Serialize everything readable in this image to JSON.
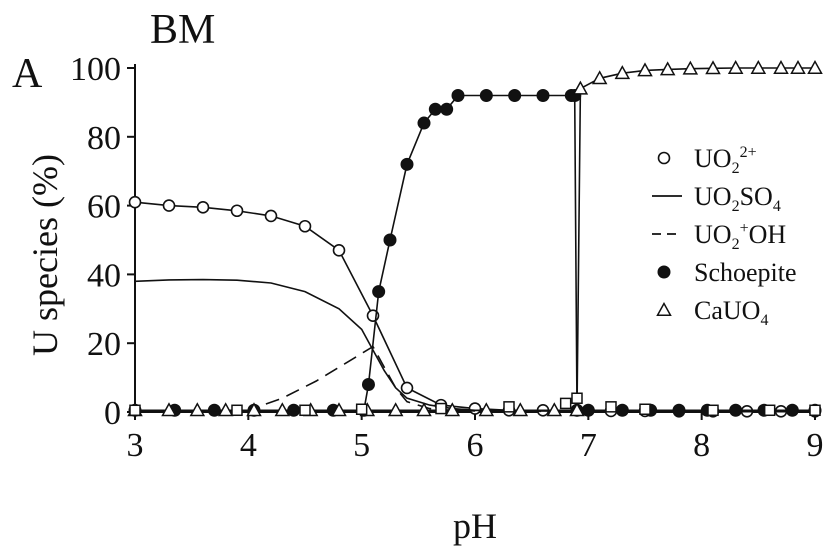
{
  "chart_data": {
    "type": "line",
    "panel_title": "BM",
    "panel_letter": "A",
    "xlabel": "pH",
    "ylabel": "U species (%)",
    "xlim": [
      3,
      9
    ],
    "ylim": [
      0,
      100
    ],
    "xticks": [
      3,
      4,
      5,
      6,
      7,
      8,
      9
    ],
    "yticks": [
      0,
      20,
      40,
      60,
      80,
      100
    ],
    "grid": false,
    "legend_position": "right",
    "series": [
      {
        "name": "UO2 2+",
        "marker": "open-circle",
        "line": "solid",
        "x": [
          3.0,
          3.3,
          3.6,
          3.9,
          4.2,
          4.5,
          4.8,
          5.1,
          5.4,
          5.7,
          6.0,
          6.3,
          6.6,
          6.9,
          7.2,
          7.5,
          7.8,
          8.1,
          8.4,
          8.7,
          9.0
        ],
        "y": [
          61,
          60,
          59.5,
          58.5,
          57,
          54,
          47,
          28,
          7,
          2,
          1,
          0.5,
          0.5,
          0.5,
          0.3,
          0.3,
          0.2,
          0.2,
          0.2,
          0.2,
          0.2
        ]
      },
      {
        "name": "UO2SO4",
        "marker": "none",
        "line": "solid",
        "x": [
          3.0,
          3.3,
          3.6,
          3.9,
          4.2,
          4.5,
          4.8,
          5.0,
          5.1,
          5.2,
          5.3,
          5.4,
          5.6,
          5.8,
          6.0,
          6.5,
          7.0,
          8.0,
          9.0
        ],
        "y": [
          38,
          38.4,
          38.5,
          38.3,
          37.5,
          35,
          30,
          24,
          18,
          12,
          7,
          4,
          2,
          1,
          0.5,
          0.3,
          0.2,
          0.1,
          0.1
        ]
      },
      {
        "name": "UO2OH+",
        "marker": "none",
        "line": "dashed",
        "x": [
          3.0,
          3.5,
          4.0,
          4.3,
          4.6,
          4.9,
          5.1,
          5.2,
          5.3,
          5.4,
          5.6,
          5.8,
          6.0,
          6.5,
          7.0,
          8.0,
          9.0
        ],
        "y": [
          0,
          0.2,
          0.5,
          4,
          9,
          15,
          19,
          13,
          7,
          3,
          1,
          0.5,
          0.3,
          0.2,
          0.1,
          0.1,
          0.1
        ]
      },
      {
        "name": "Schoepite",
        "marker": "filled-circle",
        "line": "solid",
        "x": [
          3.0,
          3.35,
          3.7,
          4.05,
          4.4,
          4.75,
          5.02,
          5.06,
          5.15,
          5.25,
          5.4,
          5.55,
          5.65,
          5.75,
          5.85,
          6.1,
          6.35,
          6.6,
          6.85,
          6.88,
          6.9,
          7.0,
          7.3,
          7.55,
          7.8,
          8.05,
          8.3,
          8.55,
          8.8,
          9.0
        ],
        "y": [
          0.5,
          0.5,
          0.5,
          0.5,
          0.5,
          0.5,
          0.5,
          8,
          35,
          50,
          72,
          84,
          88,
          88,
          92,
          92,
          92,
          92,
          92,
          92,
          0.5,
          0.5,
          0.5,
          0.5,
          0.5,
          0.5,
          0.5,
          0.5,
          0.5,
          0.5
        ]
      },
      {
        "name": "CaUO4",
        "marker": "open-triangle",
        "line": "solid",
        "x": [
          3.0,
          3.3,
          3.55,
          3.8,
          4.05,
          4.3,
          4.55,
          4.8,
          5.05,
          5.3,
          5.55,
          5.8,
          6.1,
          6.4,
          6.7,
          6.9,
          6.93,
          7.1,
          7.3,
          7.5,
          7.7,
          7.9,
          8.1,
          8.3,
          8.5,
          8.7,
          8.85,
          9.0
        ],
        "y": [
          0.5,
          0.5,
          0.5,
          0.5,
          0.5,
          0.5,
          0.5,
          0.5,
          0.5,
          0.5,
          0.5,
          0.5,
          0.5,
          0.5,
          0.5,
          0.5,
          94,
          97,
          98.5,
          99.3,
          99.6,
          99.8,
          99.9,
          100,
          100,
          100,
          100,
          100
        ]
      },
      {
        "name": "",
        "marker": "open-square",
        "line": "none",
        "x": [
          3.0,
          3.9,
          4.5,
          5.0,
          5.7,
          6.3,
          6.8,
          6.9,
          7.2,
          7.5,
          8.1,
          8.6,
          9.0
        ],
        "y": [
          0.5,
          0.5,
          0.5,
          0.8,
          1,
          1.5,
          2.5,
          4,
          1.5,
          0.8,
          0.5,
          0.5,
          0.5
        ]
      }
    ],
    "legend": [
      {
        "marker": "open-circle",
        "base": "UO",
        "sub": "2",
        "sup": "2+",
        "tail": ""
      },
      {
        "marker": "solid-line",
        "base": "UO",
        "sub": "2",
        "sup": "",
        "tail": "SO",
        "tail_sub": "4"
      },
      {
        "marker": "dashed-line",
        "base": "UO",
        "sub": "2",
        "sup": "+",
        "tail": "OH"
      },
      {
        "marker": "filled-circle",
        "base": "Schoepite",
        "sub": "",
        "sup": "",
        "tail": ""
      },
      {
        "marker": "open-triangle",
        "base": "CaUO",
        "sub": "4",
        "sup": "",
        "tail": ""
      }
    ]
  }
}
